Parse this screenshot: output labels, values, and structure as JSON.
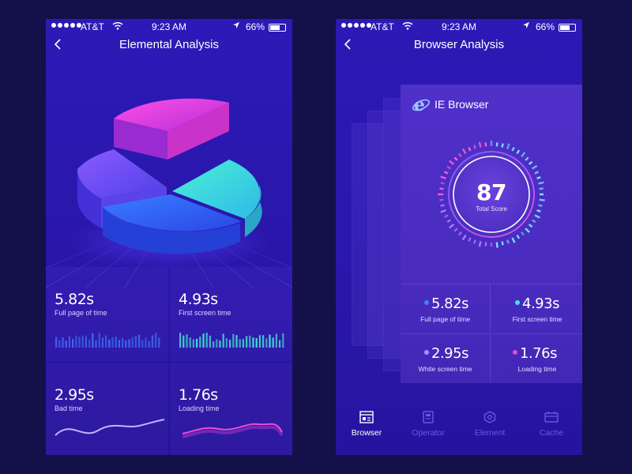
{
  "status_bar": {
    "carrier": "AT&T",
    "time": "9:23 AM",
    "battery": "66%",
    "battery_level": 0.66,
    "signal_bars": 5
  },
  "left_screen": {
    "title": "Elemental Analysis",
    "pie_segments": [
      {
        "name": "magenta",
        "color": "#e63bd6"
      },
      {
        "name": "teal",
        "color": "#38e0cf"
      },
      {
        "name": "blue",
        "color": "#2b64f0"
      },
      {
        "name": "purple",
        "color": "#6a47ee"
      }
    ],
    "metrics": [
      {
        "value": "5.82s",
        "label": "Full page of time",
        "chart": "bars",
        "color": "#3b6cf5"
      },
      {
        "value": "4.93s",
        "label": "First screen time",
        "chart": "bars",
        "color": "#40e0d0"
      },
      {
        "value": "2.95s",
        "label": "Bad time",
        "chart": "wave",
        "color": "#b9a8ff"
      },
      {
        "value": "1.76s",
        "label": "Loading time",
        "chart": "wave",
        "color": "#e23fd6"
      }
    ]
  },
  "right_screen": {
    "title": "Browser Analysis",
    "card": {
      "name": "IE Browser",
      "icon": "ie-browser-icon",
      "score": "87",
      "score_label": "Total Score"
    },
    "metrics": [
      {
        "value": "5.82s",
        "label": "Full page of time",
        "dot_color": "#3b82ff"
      },
      {
        "value": "4.93s",
        "label": "First screen time",
        "dot_color": "#41e4dc"
      },
      {
        "value": "2.95s",
        "label": "White screen time",
        "dot_color": "#a990ff"
      },
      {
        "value": "1.76s",
        "label": "Loading time",
        "dot_color": "#e84bd8"
      }
    ],
    "tabs": [
      {
        "label": "Browser",
        "icon": "browser-icon",
        "active": true
      },
      {
        "label": "Operator",
        "icon": "operator-icon",
        "active": false
      },
      {
        "label": "Element",
        "icon": "element-icon",
        "active": false
      },
      {
        "label": "Cache",
        "icon": "cache-icon",
        "active": false
      }
    ]
  },
  "colors": {
    "background": "#13104a",
    "screen": "#2a17aa",
    "tab_inactive": "#6e55e8",
    "accent_pink": "#e63bd6",
    "accent_teal": "#38e0cf"
  }
}
